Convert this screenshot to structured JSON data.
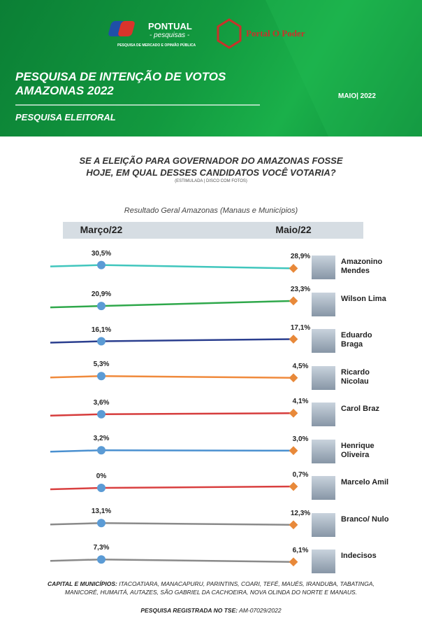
{
  "header": {
    "brand": "PONTUAL",
    "brand_sub": "- pesquisas -",
    "brand_tagline": "PESQUISA DE MERCADO E OPINIÃO PÚBLICA",
    "partner": "Portal O Poder",
    "title_line1": "PESQUISA DE INTENÇÃO DE VOTOS",
    "title_line2": "AMAZONAS 2022",
    "date": "MAIO| 2022",
    "section": "PESQUISA ELEITORAL"
  },
  "question_line1": "SE A ELEIÇÃO PARA GOVERNADOR DO AMAZONAS FOSSE",
  "question_line2": "HOJE, EM QUAL DESSES CANDIDATOS VOCÊ VOTARIA?",
  "question_note": "(ESTIMULADA | DISCO COM FOTOS)",
  "chart_data": {
    "type": "slope",
    "subtitle": "Resultado Geral Amazonas (Manaus e Municípios)",
    "categories": [
      "Março/22",
      "Maio/22"
    ],
    "marker_colors": [
      "#5b9bd5",
      "#e8893a"
    ],
    "series": [
      {
        "name": "Amazonino Mendes",
        "color": "#40c6bd",
        "values": [
          30.5,
          28.9
        ],
        "value_labels": [
          "30,5%",
          "28,9%"
        ]
      },
      {
        "name": "Wilson Lima",
        "color": "#2fa84b",
        "values": [
          20.9,
          23.3
        ],
        "value_labels": [
          "20,9%",
          "23,3%"
        ]
      },
      {
        "name": "Eduardo Braga",
        "color": "#2b3f8f",
        "values": [
          16.1,
          17.1
        ],
        "value_labels": [
          "16,1%",
          "17,1%"
        ]
      },
      {
        "name": "Ricardo Nicolau",
        "color": "#f08a3c",
        "values": [
          5.3,
          4.5
        ],
        "value_labels": [
          "5,3%",
          "4,5%"
        ]
      },
      {
        "name": "Carol Braz",
        "color": "#d63c3c",
        "values": [
          3.6,
          4.1
        ],
        "value_labels": [
          "3,6%",
          "4,1%"
        ]
      },
      {
        "name": "Henrique Oliveira",
        "color": "#4a90d0",
        "values": [
          3.2,
          3.0
        ],
        "value_labels": [
          "3,2%",
          "3,0%"
        ]
      },
      {
        "name": "Marcelo Amil",
        "color": "#d94040",
        "values": [
          0,
          0.7
        ],
        "value_labels": [
          "0%",
          "0,7%"
        ]
      },
      {
        "name": "Branco/ Nulo",
        "color": "#8a8a8a",
        "values": [
          13.1,
          12.3
        ],
        "value_labels": [
          "13,1%",
          "12,3%"
        ]
      },
      {
        "name": "Indecisos",
        "color": "#8a8a8a",
        "values": [
          7.3,
          6.1
        ],
        "value_labels": [
          "7,3%",
          "6,1%"
        ]
      }
    ]
  },
  "footer": {
    "cities_label": "CAPITAL E MUNICÍPIOS:",
    "cities": "ITACOATIARA, MANACAPURU, PARINTINS, COARI, TEFÉ, MAUÉS, IRANDUBA, TABATINGA, MANICORÉ, HUMAITÁ, AUTAZES, SÃO GABRIEL DA CACHOEIRA, NOVA OLINDA DO NORTE E MANAUS.",
    "registry_label": "PESQUISA REGISTRADA NO TSE:",
    "registry": "AM-07029/2022"
  }
}
